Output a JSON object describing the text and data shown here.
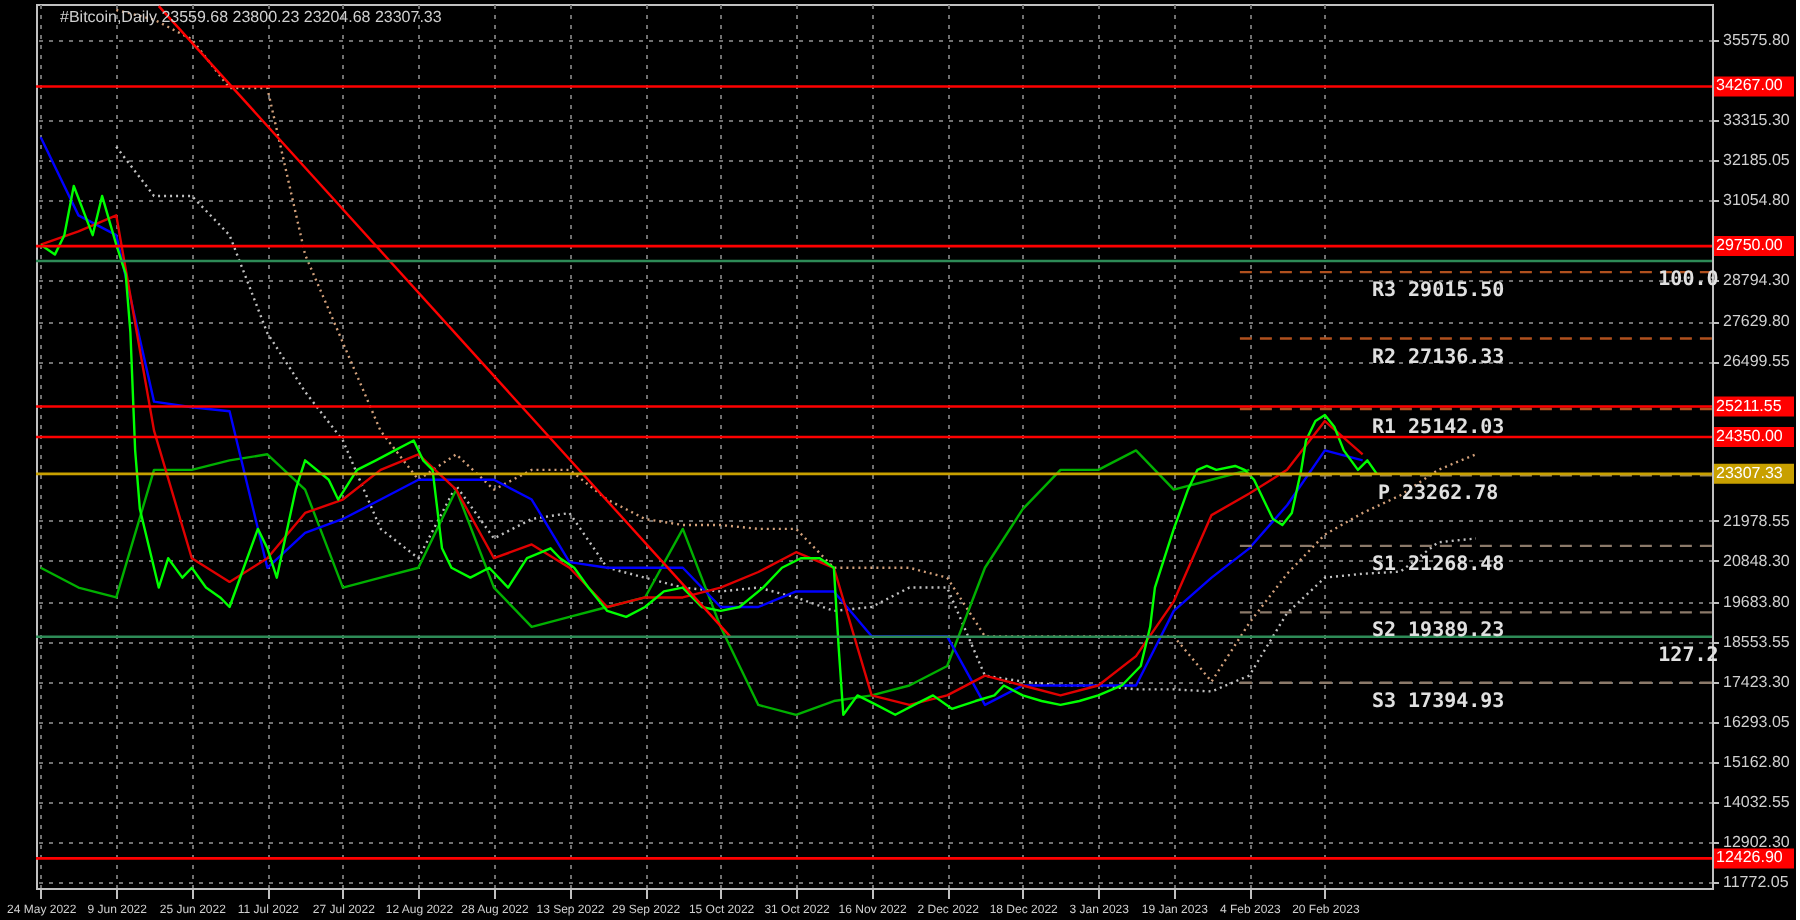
{
  "chart_data": {
    "type": "line",
    "title": "#Bitcoin,Daily  23559.68 23800.23 23204.68 23307.33",
    "xlim": [
      "2022-05-23",
      "2023-05-13"
    ],
    "xticks": [
      {
        "value": "2022-05-24",
        "label": "24 May 2022"
      },
      {
        "value": "2022-06-09",
        "label": "9 Jun 2022"
      },
      {
        "value": "2022-06-25",
        "label": "25 Jun 2022"
      },
      {
        "value": "2022-07-11",
        "label": "11 Jul 2022"
      },
      {
        "value": "2022-07-27",
        "label": "27 Jul 2022"
      },
      {
        "value": "2022-08-12",
        "label": "12 Aug 2022"
      },
      {
        "value": "2022-08-28",
        "label": "28 Aug 2022"
      },
      {
        "value": "2022-09-13",
        "label": "13 Sep 2022"
      },
      {
        "value": "2022-09-29",
        "label": "29 Sep 2022"
      },
      {
        "value": "2022-10-15",
        "label": "15 Oct 2022"
      },
      {
        "value": "2022-10-31",
        "label": "31 Oct 2022"
      },
      {
        "value": "2022-11-16",
        "label": "16 Nov 2022"
      },
      {
        "value": "2022-12-02",
        "label": "2 Dec 2022"
      },
      {
        "value": "2022-12-18",
        "label": "18 Dec 2022"
      },
      {
        "value": "2023-01-03",
        "label": "3 Jan 2023"
      },
      {
        "value": "2023-01-19",
        "label": "19 Jan 2023"
      },
      {
        "value": "2023-02-04",
        "label": "4 Feb 2023"
      },
      {
        "value": "2023-02-20",
        "label": "20 Feb 2023"
      }
    ],
    "ylim": [
      11590,
      36600
    ],
    "yticks": [
      {
        "value": 11772.05,
        "label": "11772.05"
      },
      {
        "value": 12902.3,
        "label": "12902.30"
      },
      {
        "value": 14032.55,
        "label": "14032.55"
      },
      {
        "value": 15162.8,
        "label": "15162.80"
      },
      {
        "value": 16293.05,
        "label": "16293.05"
      },
      {
        "value": 17423.3,
        "label": "17423.30"
      },
      {
        "value": 18553.55,
        "label": "18553.55"
      },
      {
        "value": 19683.8,
        "label": "19683.80"
      },
      {
        "value": 20848.3,
        "label": "20848.30"
      },
      {
        "value": 21978.55,
        "label": "21978.55"
      },
      {
        "value": 26499.55,
        "label": "26499.55"
      },
      {
        "value": 27629.8,
        "label": "27629.80"
      },
      {
        "value": 28794.3,
        "label": "28794.30"
      },
      {
        "value": 31054.8,
        "label": "31054.80"
      },
      {
        "value": 32185.05,
        "label": "32185.05"
      },
      {
        "value": 33315.3,
        "label": "33315.30"
      },
      {
        "value": 35575.8,
        "label": "35575.80"
      }
    ],
    "grid": true,
    "marker": "none",
    "series": [
      {
        "type": "line",
        "color": "#d2a07a",
        "line_style": "dotted",
        "x": [
          "2022-06-09",
          "2022-06-17",
          "2022-06-25",
          "2022-07-03",
          "2022-07-11",
          "2022-07-19",
          "2022-07-27",
          "2022-08-04",
          "2022-08-12",
          "2022-08-20",
          "2022-08-28",
          "2022-09-05",
          "2022-09-13",
          "2022-09-21",
          "2022-09-29",
          "2022-10-07",
          "2022-10-15",
          "2022-10-23",
          "2022-10-31",
          "2022-11-08",
          "2022-11-16",
          "2022-11-24",
          "2022-12-02",
          "2022-12-10",
          "2022-12-18",
          "2022-12-26",
          "2023-01-03",
          "2023-01-11",
          "2023-01-19",
          "2023-01-27",
          "2023-02-04",
          "2023-02-12",
          "2023-02-20",
          "2023-02-28",
          "2023-03-08",
          "2023-03-16",
          "2023-03-24"
        ],
        "values": [
          36430,
          36160,
          35600,
          34220,
          34220,
          29510,
          27020,
          24520,
          23140,
          23860,
          22860,
          23420,
          23420,
          22580,
          22030,
          21860,
          21860,
          21750,
          21750,
          20650,
          20650,
          20650,
          20370,
          18710,
          18710,
          18710,
          18710,
          18710,
          18710,
          17430,
          19090,
          20480,
          21590,
          22200,
          22700,
          23420,
          23860
        ]
      },
      {
        "type": "line",
        "color": "#c0c0c0",
        "line_style": "dotted",
        "x": [
          "2022-06-09",
          "2022-06-17",
          "2022-06-25",
          "2022-07-03",
          "2022-07-11",
          "2022-07-19",
          "2022-07-27",
          "2022-08-04",
          "2022-08-12",
          "2022-08-20",
          "2022-08-28",
          "2022-09-05",
          "2022-09-13",
          "2022-09-21",
          "2022-09-29",
          "2022-10-07",
          "2022-10-15",
          "2022-10-23",
          "2022-10-31",
          "2022-11-08",
          "2022-11-16",
          "2022-11-24",
          "2022-12-02",
          "2022-12-10",
          "2022-12-18",
          "2022-12-26",
          "2023-01-03",
          "2023-01-11",
          "2023-01-19",
          "2023-01-27",
          "2023-02-04",
          "2023-02-12",
          "2023-02-20",
          "2023-02-28",
          "2023-03-08",
          "2023-03-16",
          "2023-03-24"
        ],
        "values": [
          32560,
          31170,
          31170,
          30060,
          27290,
          25630,
          24250,
          21750,
          20920,
          22970,
          21480,
          22030,
          22200,
          20650,
          20370,
          20090,
          19980,
          20090,
          19810,
          19430,
          19540,
          20090,
          20090,
          17600,
          17430,
          17320,
          17320,
          17210,
          17210,
          17150,
          17600,
          19370,
          20370,
          20480,
          20540,
          21370,
          21480
        ]
      },
      {
        "type": "line",
        "color": "#00b000",
        "line_style": "solid",
        "x": [
          "2022-05-24",
          "2022-06-01",
          "2022-06-09",
          "2022-06-17",
          "2022-06-25",
          "2022-07-03",
          "2022-07-11",
          "2022-07-19",
          "2022-07-27",
          "2022-08-04",
          "2022-08-12",
          "2022-08-20",
          "2022-08-28",
          "2022-09-05",
          "2022-09-13",
          "2022-09-21",
          "2022-09-29",
          "2022-10-07",
          "2022-10-15",
          "2022-10-23",
          "2022-10-31",
          "2022-11-08",
          "2022-11-16",
          "2022-11-24",
          "2022-12-02",
          "2022-12-10",
          "2022-12-18",
          "2022-12-26",
          "2023-01-03",
          "2023-01-11",
          "2023-01-19",
          "2023-01-27",
          "2023-02-04"
        ],
        "values": [
          20650,
          20090,
          19810,
          23420,
          23420,
          23690,
          23860,
          22860,
          20090,
          20370,
          20650,
          22860,
          20090,
          18980,
          19260,
          19540,
          19810,
          21750,
          18980,
          16770,
          16490,
          16880,
          17040,
          17320,
          17870,
          20650,
          22310,
          23420,
          23420,
          23970,
          22860,
          23140,
          23420
        ]
      },
      {
        "type": "line",
        "color": "#0000ff",
        "line_style": "solid",
        "x": [
          "2022-05-24",
          "2022-06-01",
          "2022-06-09",
          "2022-06-17",
          "2022-06-25",
          "2022-07-03",
          "2022-07-11",
          "2022-07-19",
          "2022-07-27",
          "2022-08-04",
          "2022-08-12",
          "2022-08-20",
          "2022-08-28",
          "2022-09-05",
          "2022-09-13",
          "2022-09-21",
          "2022-09-29",
          "2022-10-07",
          "2022-10-15",
          "2022-10-23",
          "2022-10-31",
          "2022-11-08",
          "2022-11-16",
          "2022-11-24",
          "2022-12-02",
          "2022-12-10",
          "2022-12-18",
          "2022-12-26",
          "2023-01-03",
          "2023-01-11",
          "2023-01-19",
          "2023-01-27",
          "2023-02-04",
          "2023-02-12",
          "2023-02-20",
          "2023-02-28"
        ],
        "values": [
          32830,
          30620,
          30060,
          25350,
          25190,
          25080,
          20650,
          21640,
          22030,
          22580,
          23140,
          23140,
          23140,
          22580,
          20810,
          20650,
          20650,
          20650,
          19540,
          19540,
          19980,
          19980,
          18710,
          18710,
          18710,
          16770,
          17320,
          17320,
          17320,
          17320,
          19430,
          20370,
          21200,
          22420,
          23970,
          23690
        ]
      },
      {
        "type": "line",
        "color": "#e00000",
        "line_style": "solid",
        "x": [
          "2022-05-24",
          "2022-06-01",
          "2022-06-09",
          "2022-06-17",
          "2022-06-25",
          "2022-07-03",
          "2022-07-11",
          "2022-07-19",
          "2022-07-27",
          "2022-08-04",
          "2022-08-12",
          "2022-08-20",
          "2022-08-28",
          "2022-09-05",
          "2022-09-13",
          "2022-09-21",
          "2022-09-29",
          "2022-10-07",
          "2022-10-15",
          "2022-10-23",
          "2022-10-31",
          "2022-11-08",
          "2022-11-16",
          "2022-11-24",
          "2022-12-02",
          "2022-12-10",
          "2022-12-18",
          "2022-12-26",
          "2023-01-03",
          "2023-01-11",
          "2023-01-19",
          "2023-01-27",
          "2023-02-04",
          "2023-02-12",
          "2023-02-20",
          "2023-02-28"
        ],
        "values": [
          29790,
          30170,
          30620,
          24530,
          20920,
          20250,
          20920,
          22200,
          22580,
          23420,
          23860,
          22860,
          20920,
          21310,
          20650,
          19540,
          19810,
          19810,
          20090,
          20530,
          21090,
          20650,
          17040,
          16770,
          17040,
          17600,
          17320,
          17040,
          17320,
          18150,
          19700,
          22140,
          22750,
          23420,
          24800,
          23860
        ]
      },
      {
        "type": "line",
        "color": "#00ff00",
        "line_style": "solid",
        "x": [
          "2022-05-24",
          "2022-05-27",
          "2022-05-29",
          "2022-05-31",
          "2022-06-04",
          "2022-06-06",
          "2022-06-09",
          "2022-06-11",
          "2022-06-12",
          "2022-06-13",
          "2022-06-14",
          "2022-06-16",
          "2022-06-18",
          "2022-06-20",
          "2022-06-23",
          "2022-06-25",
          "2022-06-28",
          "2022-07-01",
          "2022-07-03",
          "2022-07-06",
          "2022-07-09",
          "2022-07-11",
          "2022-07-13",
          "2022-07-17",
          "2022-07-19",
          "2022-07-24",
          "2022-07-26",
          "2022-07-30",
          "2022-08-03",
          "2022-08-07",
          "2022-08-11",
          "2022-08-13",
          "2022-08-15",
          "2022-08-17",
          "2022-08-19",
          "2022-08-23",
          "2022-08-27",
          "2022-08-31",
          "2022-09-04",
          "2022-09-09",
          "2022-09-11",
          "2022-09-14",
          "2022-09-17",
          "2022-09-21",
          "2022-09-25",
          "2022-09-29",
          "2022-10-03",
          "2022-10-07",
          "2022-10-11",
          "2022-10-15",
          "2022-10-19",
          "2022-10-24",
          "2022-10-28",
          "2022-11-01",
          "2022-11-05",
          "2022-11-08",
          "2022-11-09",
          "2022-11-10",
          "2022-11-13",
          "2022-11-17",
          "2022-11-21",
          "2022-11-25",
          "2022-11-29",
          "2022-12-03",
          "2022-12-08",
          "2022-12-12",
          "2022-12-14",
          "2022-12-18",
          "2022-12-22",
          "2022-12-26",
          "2022-12-30",
          "2023-01-03",
          "2023-01-08",
          "2023-01-12",
          "2023-01-14",
          "2023-01-15",
          "2023-01-17",
          "2023-01-19",
          "2023-01-22",
          "2023-01-24",
          "2023-01-26",
          "2023-01-28",
          "2023-02-01",
          "2023-02-03",
          "2023-02-05",
          "2023-02-07",
          "2023-02-09",
          "2023-02-11",
          "2023-02-13",
          "2023-02-15",
          "2023-02-16",
          "2023-02-18",
          "2023-02-20",
          "2023-02-22",
          "2023-02-24",
          "2023-02-27",
          "2023-03-01",
          "2023-03-03"
        ],
        "values": [
          29790,
          29510,
          30060,
          31450,
          30060,
          31170,
          29790,
          28960,
          27300,
          23970,
          22310,
          21200,
          20090,
          20920,
          20370,
          20650,
          20090,
          19810,
          19540,
          20650,
          21750,
          21200,
          20370,
          22860,
          23690,
          23140,
          22580,
          23420,
          23690,
          23970,
          24250,
          23690,
          23420,
          21200,
          20650,
          20370,
          20650,
          20090,
          20920,
          21200,
          20920,
          20650,
          20090,
          19430,
          19260,
          19540,
          19980,
          20090,
          19540,
          19430,
          19540,
          20090,
          20650,
          20920,
          20920,
          20650,
          18430,
          16490,
          17040,
          16770,
          16490,
          16770,
          17040,
          16660,
          16880,
          17040,
          17320,
          17040,
          16880,
          16770,
          16880,
          17040,
          17320,
          17870,
          18980,
          20090,
          20920,
          21750,
          22860,
          23420,
          23530,
          23420,
          23530,
          23420,
          23140,
          22580,
          22030,
          21860,
          22200,
          23420,
          24250,
          24800,
          24970,
          24640,
          23970,
          23420,
          23690,
          23307.33
        ]
      },
      {
        "type": "line",
        "color": "#ff0000",
        "line_style": "solid",
        "x": [
          "2022-06-18",
          "2022-10-17"
        ],
        "values": [
          36540,
          18710
        ]
      },
      {
        "type": "line",
        "color": "#b0501e",
        "line_style": "dashed",
        "x": [
          "2023-02-02",
          "2023-05-13"
        ],
        "values": [
          29015.5,
          29015.5
        ]
      },
      {
        "type": "line",
        "color": "#b0501e",
        "line_style": "dashed",
        "x": [
          "2023-02-02",
          "2023-05-13"
        ],
        "values": [
          27136.33,
          27136.33
        ]
      },
      {
        "type": "line",
        "color": "#b0501e",
        "line_style": "dashed",
        "x": [
          "2023-02-02",
          "2023-05-13"
        ],
        "values": [
          25142.03,
          25142.03
        ]
      },
      {
        "type": "line",
        "color": "#a08a50",
        "line_style": "dashed",
        "x": [
          "2023-02-02",
          "2023-05-13"
        ],
        "values": [
          23262.78,
          23262.78
        ]
      },
      {
        "type": "line",
        "color": "#8c7a6a",
        "line_style": "dashed",
        "x": [
          "2023-02-02",
          "2023-05-13"
        ],
        "values": [
          21268.48,
          21268.48
        ]
      },
      {
        "type": "line",
        "color": "#8c7a6a",
        "line_style": "dashed",
        "x": [
          "2023-02-02",
          "2023-05-13"
        ],
        "values": [
          19389.23,
          19389.23
        ]
      },
      {
        "type": "line",
        "color": "#8c7a6a",
        "line_style": "dashed",
        "x": [
          "2023-02-02",
          "2023-05-13"
        ],
        "values": [
          17394.93,
          17394.93
        ]
      }
    ],
    "ref_lines": [
      {
        "axis": "y",
        "value": 34267.0,
        "label": "34267.00",
        "color": "#ff0000"
      },
      {
        "axis": "y",
        "value": 29750.0,
        "label": "29750.00",
        "color": "#ff0000"
      },
      {
        "axis": "y",
        "value": 29330,
        "color": "#2e8b57"
      },
      {
        "axis": "y",
        "value": 25211.55,
        "label": "25211.55",
        "color": "#ff0000"
      },
      {
        "axis": "y",
        "value": 24350.0,
        "label": "24350.00",
        "color": "#ff0000"
      },
      {
        "axis": "y",
        "value": 23307.33,
        "label": "23307.33",
        "color": "#c8a000"
      },
      {
        "axis": "y",
        "value": 18700,
        "color": "#2e8b57"
      },
      {
        "axis": "y",
        "value": 12426.9,
        "label": "12426.90",
        "color": "#ff0000"
      }
    ],
    "annotations": [
      {
        "text": "100.0",
        "x": "2023-05-08",
        "y": 29330
      },
      {
        "text": "127.2",
        "x": "2023-05-08",
        "y": 18700
      },
      {
        "text": "R3 29015.50",
        "x": "2023-03-16",
        "y": 29015.5
      },
      {
        "text": "R2 27136.33",
        "x": "2023-03-16",
        "y": 27136.33
      },
      {
        "text": "R1 25142.03",
        "x": "2023-03-16",
        "y": 25142.03
      },
      {
        "text": "P 23262.78",
        "x": "2023-03-16",
        "y": 23262.78
      },
      {
        "text": "S1 21268.48",
        "x": "2023-03-16",
        "y": 21268.48
      },
      {
        "text": "S2 19389.23",
        "x": "2023-03-16",
        "y": 19389.23
      },
      {
        "text": "S3 17394.93",
        "x": "2023-03-16",
        "y": 17394.93
      }
    ]
  }
}
